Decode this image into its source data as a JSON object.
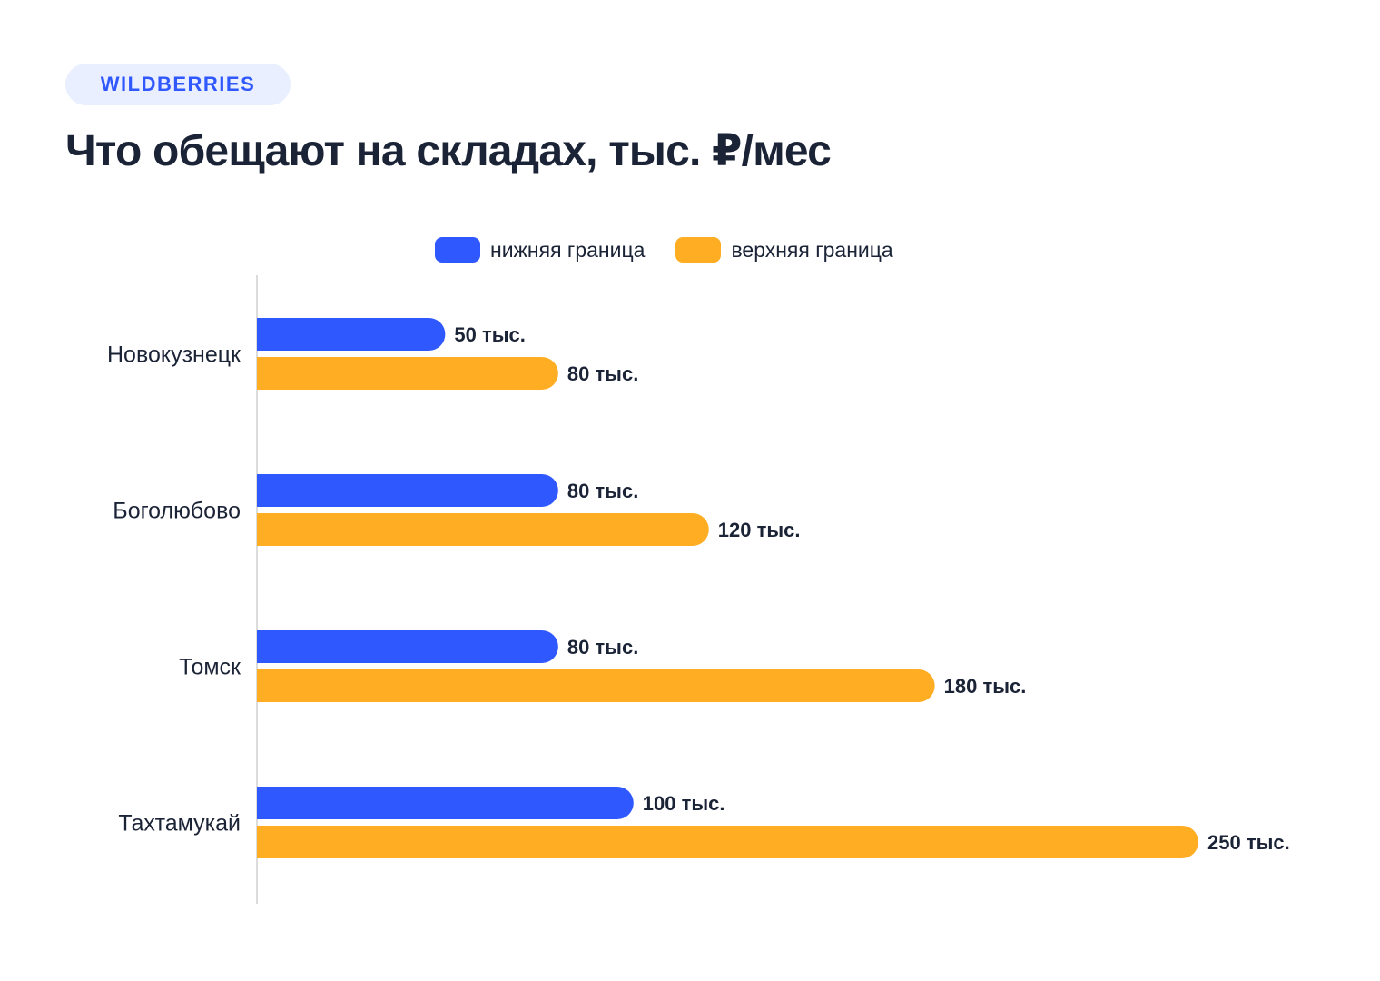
{
  "brand": {
    "label": "WILDBERRIES"
  },
  "colors": {
    "lower": "#3058ff",
    "upper": "#ffae23",
    "axis": "#dcdcdc",
    "text": "#1b2336",
    "badge_bg": "#e9effe"
  },
  "chart_data": {
    "type": "bar",
    "orientation": "horizontal",
    "title": "Что обещают на складах, тыс. ₽/мес",
    "categories": [
      "Новокузнецк",
      "Боголюбово",
      "Томск",
      "Тахтамукай"
    ],
    "series": [
      {
        "name": "нижняя граница",
        "color": "#3058ff",
        "values": [
          50,
          80,
          80,
          100
        ],
        "labels": [
          "50 тыс.",
          "80 тыс.",
          "80 тыс.",
          "100 тыс."
        ]
      },
      {
        "name": "верхняя граница",
        "color": "#ffae23",
        "values": [
          80,
          120,
          180,
          250
        ],
        "labels": [
          "80 тыс.",
          "120 тыс.",
          "180 тыс.",
          "250 тыс."
        ]
      }
    ],
    "xlim": [
      0,
      250
    ],
    "grid": false,
    "legend_position": "top-center",
    "xlabel": "",
    "ylabel": ""
  }
}
